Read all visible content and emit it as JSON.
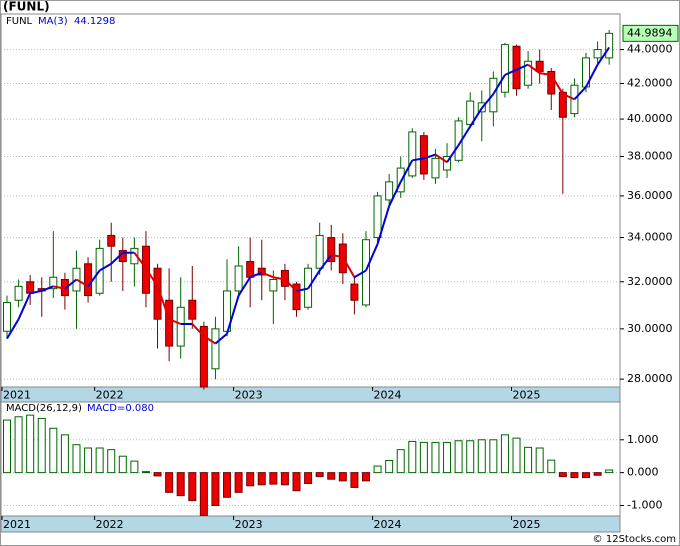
{
  "chart_data": [
    {
      "type": "candlestick",
      "title": "(FUNL)",
      "name": "FUNL",
      "ma_name": "MA(3)",
      "categories": [
        "2021",
        null,
        null,
        null,
        null,
        null,
        null,
        null,
        "2022",
        null,
        null,
        null,
        null,
        null,
        null,
        null,
        null,
        null,
        null,
        null,
        "2023",
        null,
        null,
        null,
        null,
        null,
        null,
        null,
        null,
        null,
        null,
        null,
        "2024",
        null,
        null,
        null,
        null,
        null,
        null,
        null,
        null,
        null,
        null,
        null,
        "2025",
        null,
        null,
        null,
        null,
        null,
        null,
        null,
        null
      ],
      "open": [
        29.9,
        31.2,
        32.0,
        31.7,
        31.7,
        32.1,
        31.6,
        32.8,
        31.5,
        34.1,
        33.4,
        32.8,
        33.6,
        32.6,
        31.2,
        29.3,
        31.2,
        30.1,
        28.4,
        29.9,
        31.6,
        32.9,
        32.6,
        31.6,
        32.5,
        31.9,
        30.9,
        32.6,
        34.0,
        33.7,
        31.9,
        31.0,
        34.0,
        35.8,
        36.2,
        37.0,
        39.1,
        36.9,
        37.3,
        37.8,
        39.7,
        40.4,
        40.4,
        41.5,
        44.2,
        41.9,
        43.3,
        42.7,
        41.5,
        40.3,
        41.8,
        43.5,
        43.5
      ],
      "high": [
        31.4,
        32.1,
        32.3,
        32.2,
        34.3,
        32.4,
        33.4,
        33.1,
        33.9,
        34.7,
        34.0,
        34.0,
        34.3,
        32.8,
        32.6,
        32.2,
        32.7,
        30.3,
        30.5,
        33.0,
        33.6,
        34.0,
        33.9,
        32.5,
        32.8,
        32.0,
        32.8,
        34.7,
        34.6,
        34.2,
        32.2,
        34.3,
        36.2,
        37.1,
        38.0,
        39.5,
        39.3,
        38.4,
        38.7,
        40.1,
        41.5,
        41.6,
        42.7,
        44.4,
        44.3,
        43.9,
        44.0,
        42.9,
        41.7,
        42.3,
        43.8,
        44.5,
        45.2
      ],
      "low": [
        29.6,
        30.9,
        31.0,
        30.5,
        31.3,
        30.8,
        30.0,
        31.1,
        31.4,
        32.0,
        31.6,
        31.8,
        30.9,
        29.2,
        28.7,
        28.8,
        30.0,
        27.6,
        28.0,
        29.7,
        31.3,
        30.9,
        31.2,
        30.2,
        31.2,
        30.5,
        30.8,
        32.3,
        32.5,
        31.9,
        30.6,
        30.9,
        33.7,
        35.5,
        35.9,
        36.9,
        36.8,
        36.6,
        36.9,
        37.7,
        39.5,
        38.8,
        39.6,
        41.2,
        41.3,
        41.7,
        42.0,
        40.5,
        36.1,
        40.1,
        41.5,
        43.1,
        43.1
      ],
      "close": [
        31.1,
        31.8,
        31.5,
        31.6,
        32.2,
        31.4,
        32.6,
        31.4,
        33.5,
        33.6,
        32.9,
        33.5,
        31.5,
        30.4,
        29.3,
        30.9,
        30.4,
        27.7,
        30.0,
        31.6,
        32.7,
        32.2,
        32.3,
        32.1,
        31.8,
        30.8,
        32.6,
        34.1,
        32.9,
        32.4,
        31.2,
        33.9,
        36.0,
        36.7,
        37.4,
        39.3,
        37.1,
        37.9,
        38.0,
        39.9,
        41.0,
        40.9,
        42.3,
        44.3,
        41.7,
        43.3,
        42.7,
        41.4,
        40.1,
        41.9,
        43.5,
        44.0,
        44.9894
      ],
      "ma": [
        29.6,
        30.4,
        31.5,
        31.6,
        31.8,
        31.7,
        32.1,
        31.8,
        32.5,
        32.8,
        33.3,
        33.3,
        32.6,
        31.8,
        30.4,
        30.2,
        30.2,
        29.7,
        29.4,
        29.8,
        31.4,
        32.2,
        32.4,
        32.2,
        32.1,
        31.6,
        31.7,
        32.5,
        33.2,
        33.1,
        32.2,
        32.5,
        33.7,
        35.5,
        36.7,
        37.8,
        37.9,
        38.1,
        37.7,
        38.6,
        39.6,
        40.6,
        41.4,
        42.5,
        42.8,
        43.1,
        42.6,
        42.5,
        41.4,
        41.1,
        41.8,
        43.1,
        44.1298
      ],
      "up_color": "#006600",
      "down_color": "#ee0000",
      "ma_up_color": "#0000dd",
      "ma_down_color": "#dd0000",
      "log_scale": true,
      "grid": true,
      "ylim": [
        27.7,
        46.2
      ],
      "yticks": [
        {
          "value": 28,
          "label": "28.0000"
        },
        {
          "value": 30,
          "label": "30.0000"
        },
        {
          "value": 32,
          "label": "32.0000"
        },
        {
          "value": 34,
          "label": "34.0000"
        },
        {
          "value": 36,
          "label": "36.0000"
        },
        {
          "value": 38,
          "label": "38.0000"
        },
        {
          "value": 40,
          "label": "40.0000"
        },
        {
          "value": 42,
          "label": "42.0000"
        },
        {
          "value": 44,
          "label": "44.0000"
        }
      ]
    },
    {
      "type": "bar",
      "title": "MACD(26,12,9)",
      "current_label": "MACD=0.080",
      "categories": [
        "2021",
        null,
        null,
        null,
        null,
        null,
        null,
        null,
        "2022",
        null,
        null,
        null,
        null,
        null,
        null,
        null,
        null,
        null,
        null,
        null,
        "2023",
        null,
        null,
        null,
        null,
        null,
        null,
        null,
        null,
        null,
        null,
        null,
        "2024",
        null,
        null,
        null,
        null,
        null,
        null,
        null,
        null,
        null,
        null,
        null,
        "2025",
        null,
        null,
        null,
        null,
        null,
        null,
        null,
        null
      ],
      "values": [
        1.6,
        1.7,
        1.75,
        1.65,
        1.35,
        1.15,
        0.85,
        0.75,
        0.75,
        0.7,
        0.5,
        0.35,
        0.03,
        -0.1,
        -0.6,
        -0.7,
        -0.85,
        -1.3,
        -1.0,
        -0.75,
        -0.6,
        -0.4,
        -0.37,
        -0.35,
        -0.37,
        -0.55,
        -0.33,
        -0.12,
        -0.2,
        -0.25,
        -0.45,
        -0.25,
        0.2,
        0.37,
        0.7,
        0.95,
        0.92,
        0.92,
        0.92,
        0.97,
        0.97,
        1.0,
        1.0,
        1.15,
        1.05,
        0.77,
        0.75,
        0.38,
        -0.12,
        -0.15,
        -0.15,
        -0.08,
        0.08
      ],
      "up_color": "#006600",
      "down_color": "#ee0000",
      "grid": true,
      "ylim": [
        -1.32,
        2.15
      ],
      "yticks": [
        {
          "value": -1,
          "label": "-1.000"
        },
        {
          "value": 0,
          "label": "0.000"
        },
        {
          "value": 1,
          "label": "1.000"
        }
      ]
    }
  ],
  "footer": "© 12Stocks.com"
}
